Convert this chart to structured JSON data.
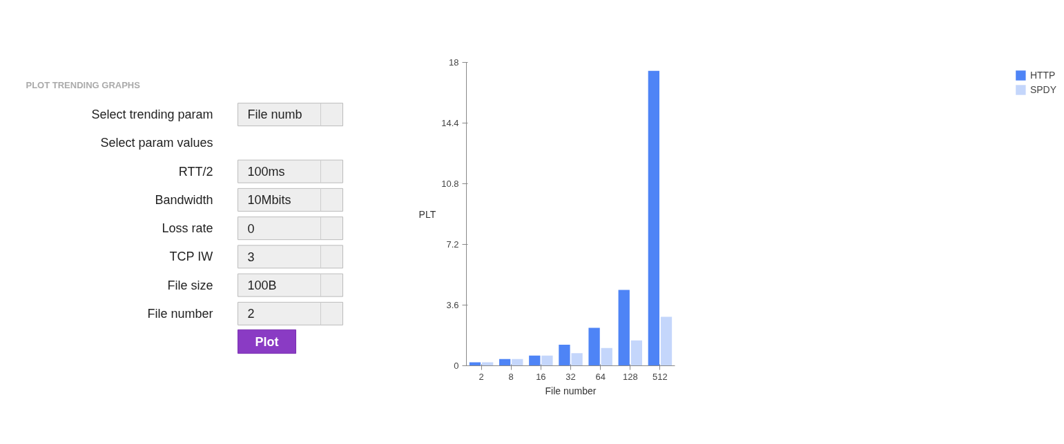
{
  "chart_data": [
    {
      "type": "other",
      "title": "PLOT TRENDING GRAPHS",
      "categories": [
        "Select trending param",
        "Select param values",
        "RTT/2",
        "Bandwidth",
        "Loss rate",
        "TCP IW",
        "File size",
        "File number"
      ],
      "value_labels": [
        "File numb",
        null,
        "100ms",
        "10Mbits",
        "0",
        "3",
        "100B",
        "2"
      ],
      "annotations": [
        "Plot"
      ]
    },
    {
      "type": "bar",
      "xlabel": "File number",
      "ylabel": "PLT",
      "categories": [
        "2",
        "8",
        "16",
        "32",
        "64",
        "128",
        "512"
      ],
      "series": [
        {
          "name": "HTTP",
          "color": "#4e84f6",
          "values": [
            0.2,
            0.4,
            0.6,
            1.25,
            2.25,
            4.5,
            17.5
          ]
        },
        {
          "name": "SPDY",
          "color": "#c4d6fb",
          "values": [
            0.2,
            0.4,
            0.6,
            0.75,
            1.05,
            1.5,
            2.9
          ]
        }
      ],
      "ylim": [
        0,
        18
      ],
      "yticks": [
        0,
        3.6,
        7.2,
        10.8,
        14.4,
        18
      ],
      "grid": false,
      "legend": "right"
    }
  ]
}
